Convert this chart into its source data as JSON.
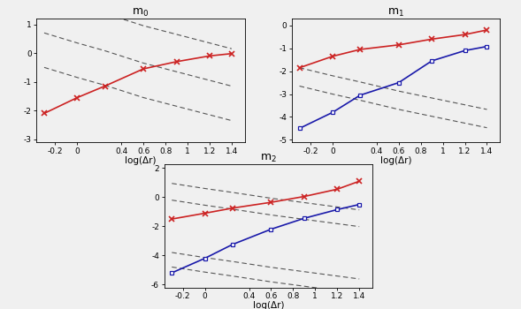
{
  "x_points": [
    -0.3,
    0.0,
    0.25,
    0.6,
    0.9,
    1.2,
    1.4
  ],
  "m0_red_y": [
    -2.1,
    -1.55,
    -1.15,
    -0.55,
    -0.3,
    -0.1,
    -0.02
  ],
  "m0_dash1_y": [
    0.7,
    0.35,
    0.08,
    -0.35,
    -0.65,
    -0.95,
    -1.15
  ],
  "m0_dash2_y": [
    2.0,
    1.65,
    1.38,
    0.95,
    0.65,
    0.35,
    0.15
  ],
  "m0_dash3_y": [
    -0.5,
    -0.85,
    -1.12,
    -1.55,
    -1.85,
    -2.15,
    -2.35
  ],
  "m0_ylim": [
    -3.1,
    1.2
  ],
  "m0_yticks": [
    1,
    0,
    -1,
    -2,
    -3
  ],
  "m0_title": "m$_0$",
  "m1_red_y": [
    -1.85,
    -1.35,
    -1.05,
    -0.85,
    -0.6,
    -0.4,
    -0.2
  ],
  "m1_blue_y": [
    -4.5,
    -3.8,
    -3.05,
    -2.5,
    -1.55,
    -1.1,
    -0.92
  ],
  "m1_dash1_y": [
    -1.85,
    -2.2,
    -2.47,
    -2.87,
    -3.17,
    -3.47,
    -3.67
  ],
  "m1_dash2_y": [
    -2.65,
    -3.0,
    -3.27,
    -3.67,
    -3.97,
    -4.27,
    -4.47
  ],
  "m1_ylim": [
    -5.1,
    0.3
  ],
  "m1_yticks": [
    0,
    -1,
    -2,
    -3,
    -4,
    -5
  ],
  "m1_title": "m$_1$",
  "m2_red_y": [
    -1.5,
    -1.1,
    -0.75,
    -0.35,
    0.05,
    0.55,
    1.1
  ],
  "m2_blue_y": [
    -5.2,
    -4.2,
    -3.25,
    -2.2,
    -1.45,
    -0.85,
    -0.5
  ],
  "m2_dash1_y": [
    -0.2,
    -0.55,
    -0.82,
    -1.22,
    -1.52,
    -1.82,
    -2.02
  ],
  "m2_dash2_y": [
    0.95,
    0.6,
    0.33,
    -0.07,
    -0.37,
    -0.67,
    -0.87
  ],
  "m2_dash3_y": [
    -3.8,
    -4.15,
    -4.42,
    -4.82,
    -5.12,
    -5.42,
    -5.62
  ],
  "m2_dash4_y": [
    -4.8,
    -5.15,
    -5.42,
    -5.82,
    -6.12,
    -6.42,
    -6.62
  ],
  "m2_ylim": [
    -6.2,
    2.3
  ],
  "m2_yticks": [
    2,
    0,
    -2,
    -4,
    -6
  ],
  "m2_title": "m$_2$",
  "x_ticks": [
    -0.2,
    0.0,
    0.4,
    0.6,
    0.8,
    1.0,
    1.2,
    1.4
  ],
  "x_tick_labels": [
    "-0.2",
    "0",
    "0.4",
    "0.6",
    "0.8",
    "1",
    "1.2",
    "1.4"
  ],
  "xlabel": "log(Δr)",
  "red_color": "#cc2222",
  "blue_color": "#1a1aaa",
  "dashed_color": "#555555",
  "bg_color": "#f0f0f0"
}
